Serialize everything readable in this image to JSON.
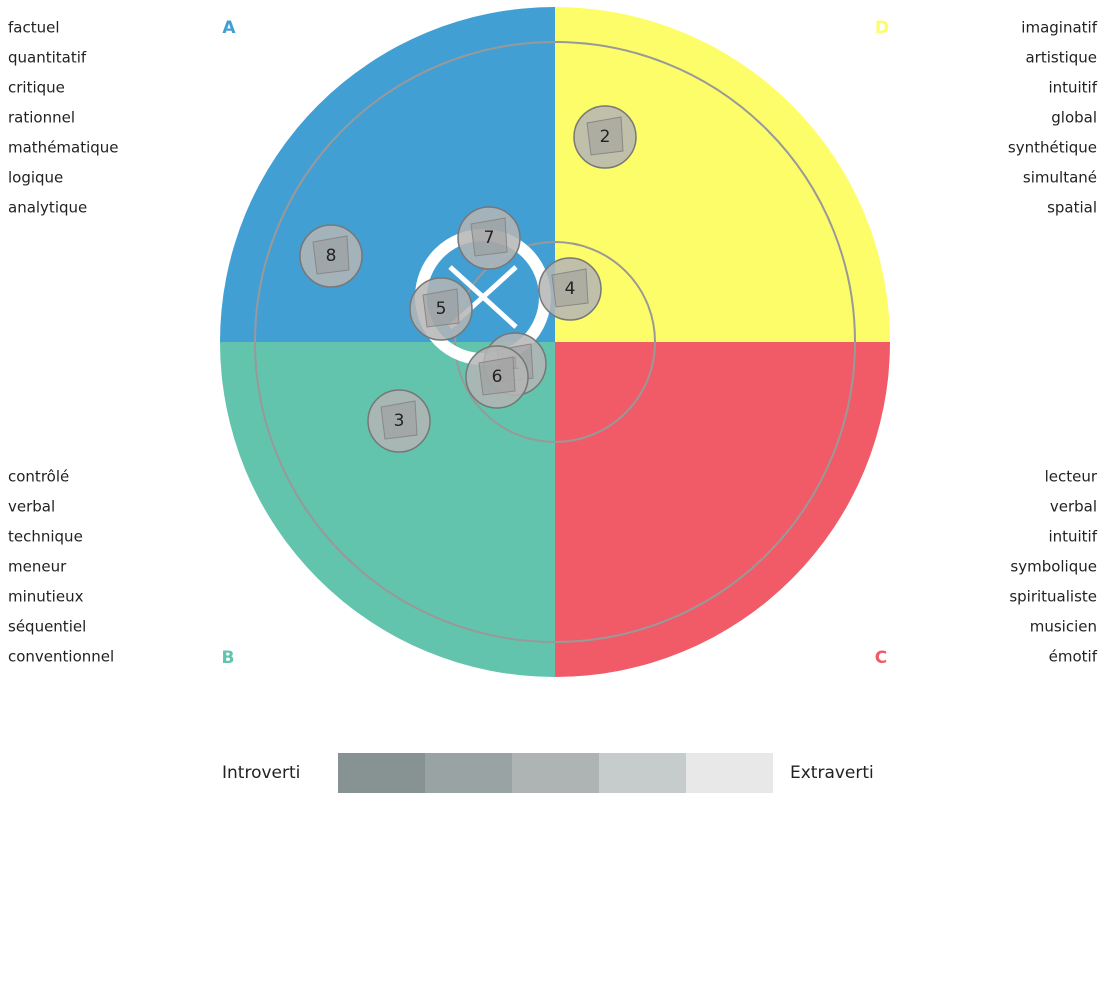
{
  "quadrants": [
    {
      "letter": "A",
      "words": [
        "factuel",
        "quantitatif",
        "critique",
        "rationnel",
        "mathématique",
        "logique",
        "analytique"
      ]
    },
    {
      "letter": "D",
      "words": [
        "imaginatif",
        "artistique",
        "intuitif",
        "global",
        "synthétique",
        "simultané",
        "spatial"
      ]
    },
    {
      "letter": "B",
      "words": [
        "contrôlé",
        "verbal",
        "technique",
        "meneur",
        "minutieux",
        "séquentiel",
        "conventionnel"
      ]
    },
    {
      "letter": "C",
      "words": [
        "lecteur",
        "verbal",
        "intuitif",
        "symbolique",
        "spiritualiste",
        "musicien",
        "émotif"
      ]
    }
  ],
  "markers": [
    "2",
    "7",
    "8",
    "4",
    "5",
    "1",
    "6",
    "3"
  ],
  "legend": {
    "left": "Introverti",
    "right": "Extraverti"
  }
}
